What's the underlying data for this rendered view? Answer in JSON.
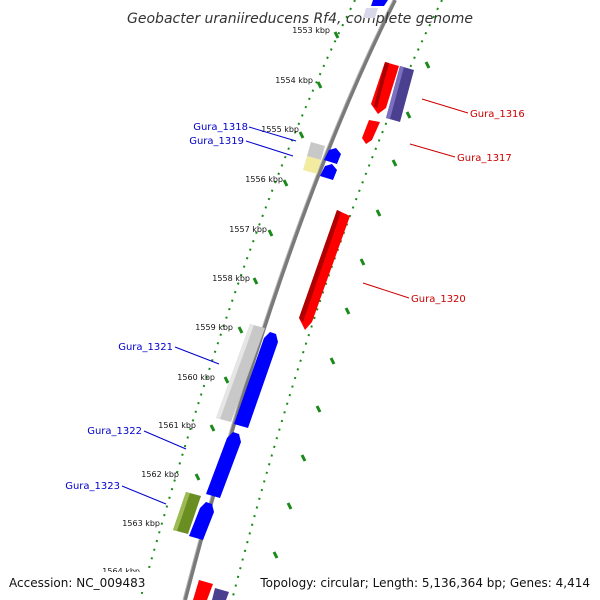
{
  "title": "Geobacter uraniireducens Rf4, complete genome",
  "footer": {
    "accession": "Accession: NC_009483",
    "topology": "Topology: circular; Length: 5,136,364 bp; Genes: 4,414"
  },
  "scale_labels": [
    "1553 kbp",
    "1554 kbp",
    "1555 kbp",
    "1556 kbp",
    "1557 kbp",
    "1558 kbp",
    "1559 kbp",
    "1560 kbp",
    "1561 kbp",
    "1562 kbp",
    "1563 kbp",
    "1564 kbp"
  ],
  "genes": {
    "forward": [
      {
        "name": "Gura_1316",
        "color": "#cc0000"
      },
      {
        "name": "Gura_1317",
        "color": "#cc0000"
      },
      {
        "name": "Gura_1320",
        "color": "#cc0000"
      }
    ],
    "reverse": [
      {
        "name": "Gura_1318",
        "color": "#0000cc"
      },
      {
        "name": "Gura_1319",
        "color": "#0000cc"
      },
      {
        "name": "Gura_1321",
        "color": "#0000cc"
      },
      {
        "name": "Gura_1322",
        "color": "#0000cc"
      },
      {
        "name": "Gura_1323",
        "color": "#0000cc"
      }
    ]
  },
  "colors": {
    "forward_cds": "#ff0000",
    "reverse_cds": "#0000ff",
    "cog_purple": "#4b3f8f",
    "cog_gray": "#c8c8c8",
    "cog_yellow": "#f3eba0",
    "cog_green": "#6b8e23",
    "backbone": "#7a7a7a",
    "tick_green": "#1a8a1a"
  }
}
